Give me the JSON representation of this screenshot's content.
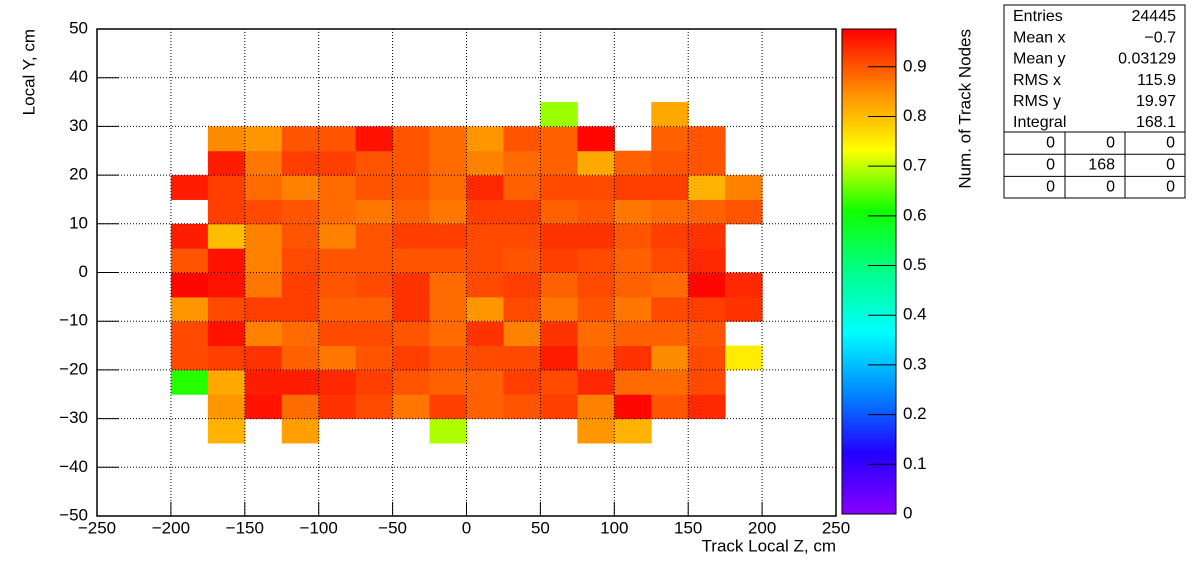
{
  "chart_data": {
    "type": "heatmap",
    "x_label": "Track Local Z, cm",
    "y_label": "Local Y, cm",
    "z_label": "Num. of Track Nodes",
    "xbins": [
      -200,
      -175,
      -150,
      -125,
      -100,
      -75,
      -50,
      -25,
      0,
      25,
      50,
      75,
      100,
      125,
      150,
      175,
      200
    ],
    "ybins": [
      -35,
      -30,
      -25,
      -20,
      -15,
      -10,
      -5,
      0,
      5,
      10,
      15,
      20,
      25,
      30,
      35
    ],
    "z": [
      [
        null,
        0.81,
        null,
        0.83,
        null,
        null,
        null,
        0.69,
        null,
        null,
        null,
        0.84,
        0.81,
        null,
        null,
        null
      ],
      [
        null,
        0.84,
        0.96,
        0.88,
        0.93,
        0.91,
        0.87,
        0.92,
        0.89,
        0.9,
        0.92,
        0.86,
        0.97,
        0.9,
        0.94,
        null
      ],
      [
        0.62,
        0.82,
        0.95,
        0.95,
        0.94,
        0.92,
        0.9,
        0.89,
        0.89,
        0.92,
        0.91,
        0.94,
        0.88,
        0.88,
        0.91,
        null
      ],
      [
        0.91,
        0.92,
        0.93,
        0.89,
        0.87,
        0.9,
        0.92,
        0.9,
        0.91,
        0.91,
        0.95,
        0.89,
        0.93,
        0.85,
        0.91,
        0.75
      ],
      [
        0.91,
        0.96,
        0.86,
        0.88,
        0.91,
        0.91,
        0.9,
        0.88,
        0.93,
        0.86,
        0.93,
        0.88,
        0.89,
        0.89,
        0.9,
        null
      ],
      [
        0.84,
        0.91,
        0.92,
        0.92,
        0.89,
        0.89,
        0.93,
        0.88,
        0.84,
        0.91,
        0.87,
        0.9,
        0.87,
        0.91,
        0.92,
        0.93
      ],
      [
        0.97,
        0.96,
        0.87,
        0.92,
        0.9,
        0.91,
        0.93,
        0.88,
        0.91,
        0.92,
        0.89,
        0.91,
        0.89,
        0.88,
        0.97,
        0.94
      ],
      [
        0.9,
        0.96,
        0.86,
        0.91,
        0.9,
        0.9,
        0.9,
        0.9,
        0.91,
        0.9,
        0.92,
        0.91,
        0.89,
        0.91,
        0.94,
        null
      ],
      [
        0.95,
        0.8,
        0.86,
        0.9,
        0.86,
        0.9,
        0.92,
        0.92,
        0.91,
        0.91,
        0.93,
        0.93,
        0.9,
        0.92,
        0.93,
        null
      ],
      [
        null,
        0.92,
        0.91,
        0.9,
        0.88,
        0.87,
        0.89,
        0.87,
        0.92,
        0.92,
        0.89,
        0.9,
        0.87,
        0.88,
        0.89,
        0.9
      ],
      [
        0.95,
        0.92,
        0.88,
        0.86,
        0.88,
        0.9,
        0.9,
        0.88,
        0.94,
        0.89,
        0.91,
        0.91,
        0.92,
        0.92,
        0.81,
        0.86
      ],
      [
        null,
        0.95,
        0.87,
        0.92,
        0.92,
        0.9,
        0.9,
        0.88,
        0.86,
        0.88,
        0.89,
        0.82,
        0.89,
        0.9,
        0.9,
        null
      ],
      [
        null,
        0.85,
        0.84,
        0.9,
        0.9,
        0.96,
        0.9,
        0.88,
        0.84,
        0.9,
        0.89,
        0.97,
        null,
        0.89,
        0.9,
        null
      ],
      [
        null,
        null,
        null,
        null,
        null,
        null,
        null,
        null,
        null,
        null,
        0.68,
        null,
        null,
        0.82,
        null,
        null
      ]
    ],
    "xlim": [
      -250,
      250
    ],
    "ylim": [
      -50,
      50
    ],
    "zlim": [
      0,
      0.976
    ],
    "xticks": [
      {
        "value": -250,
        "label": "−250"
      },
      {
        "value": -200,
        "label": "−200"
      },
      {
        "value": -150,
        "label": "−150"
      },
      {
        "value": -100,
        "label": "−100"
      },
      {
        "value": -50,
        "label": "−50"
      },
      0,
      50,
      100,
      150,
      200,
      250
    ],
    "yticks": [
      {
        "value": -50,
        "label": "−50"
      },
      {
        "value": -40,
        "label": "−40"
      },
      {
        "value": -30,
        "label": "−30"
      },
      {
        "value": -20,
        "label": "−20"
      },
      {
        "value": -10,
        "label": "−10"
      },
      0,
      10,
      20,
      30,
      40,
      50
    ],
    "zticks": [
      0,
      0.1,
      0.2,
      0.3,
      0.4,
      0.5,
      0.6,
      0.7,
      0.8,
      0.9
    ],
    "grid": true,
    "palette": [
      "#8800ff",
      "#2200ff",
      "#0088ff",
      "#00ffff",
      "#00ff88",
      "#11ff00",
      "#ffff00",
      "#ff8800",
      "#ff0000"
    ],
    "stats": {
      "rows": [
        [
          "Entries",
          "24445"
        ],
        [
          "Mean x",
          "−0.7"
        ],
        [
          "Mean y",
          "0.03129"
        ],
        [
          "RMS x",
          "115.9"
        ],
        [
          "RMS y",
          "19.97"
        ],
        [
          "Integral",
          "168.1"
        ]
      ],
      "grid": [
        [
          0,
          0,
          0
        ],
        [
          0,
          168,
          0
        ],
        [
          0,
          0,
          0
        ]
      ]
    }
  }
}
